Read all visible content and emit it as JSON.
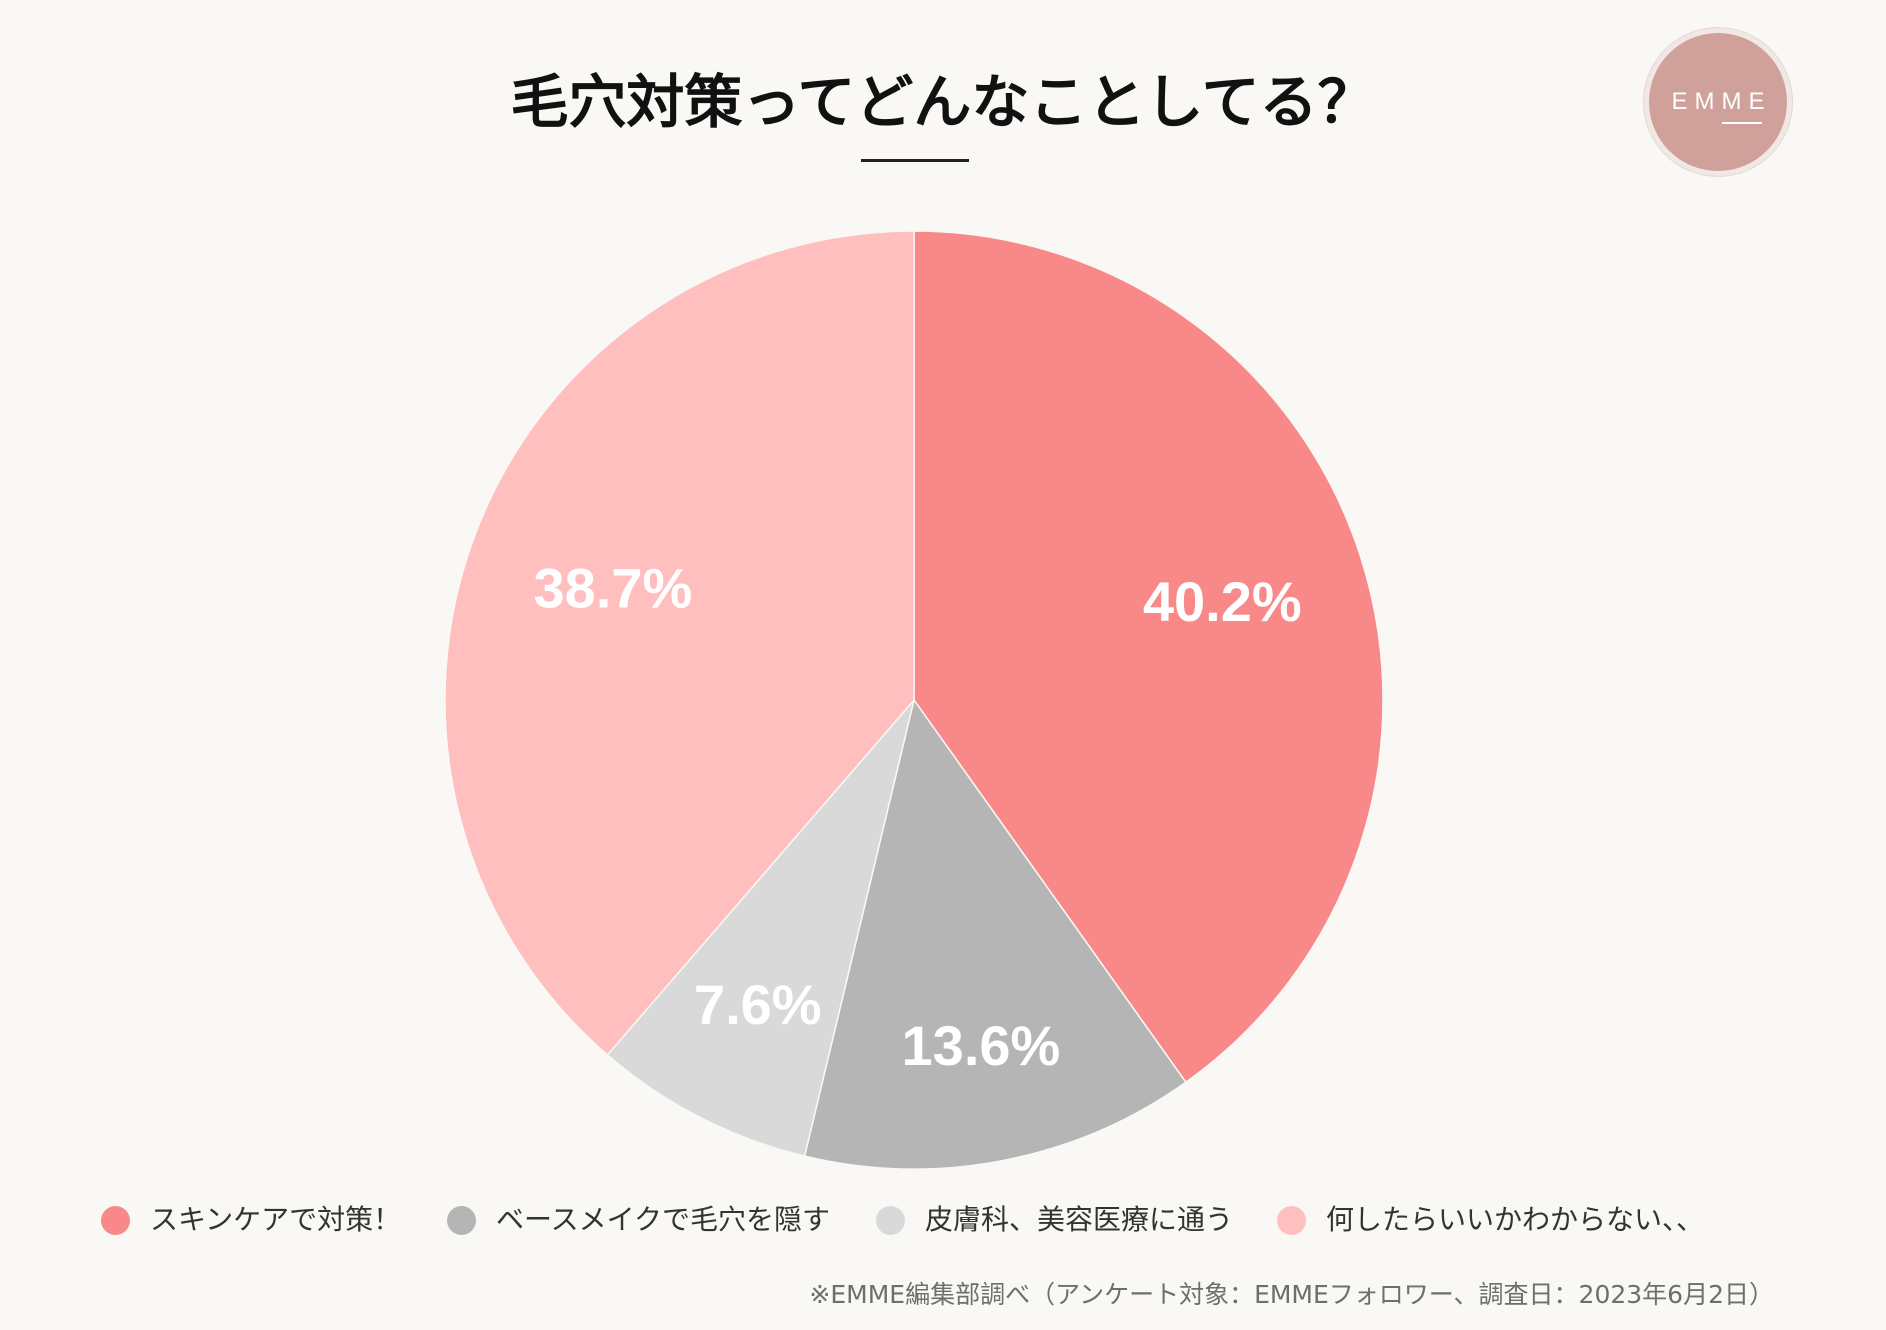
{
  "header": {
    "logo_text": "EMME"
  },
  "chart_data": {
    "type": "pie",
    "title": "毛穴対策ってどんなことしてる？",
    "categories": [
      "スキンケアで対策！",
      "ベースメイクで毛穴を隠す",
      "皮膚科、美容医療に通う",
      "何したらいいかわからない、、"
    ],
    "values": [
      40.2,
      13.6,
      7.6,
      38.7
    ],
    "labels": [
      "40.2%",
      "13.6%",
      "7.6%",
      "38.7%"
    ],
    "colors": [
      "#F98888",
      "#B5B5B5",
      "#D9D9D9",
      "#FFBFBF"
    ],
    "legend_position": "bottom",
    "source_note": "※EMME編集部調べ（アンケート対象：EMMEフォロワー、調査日：2023年6月2日）"
  },
  "theme": {
    "background": "#FAF8F5",
    "logo_color": "#CFA19A"
  }
}
